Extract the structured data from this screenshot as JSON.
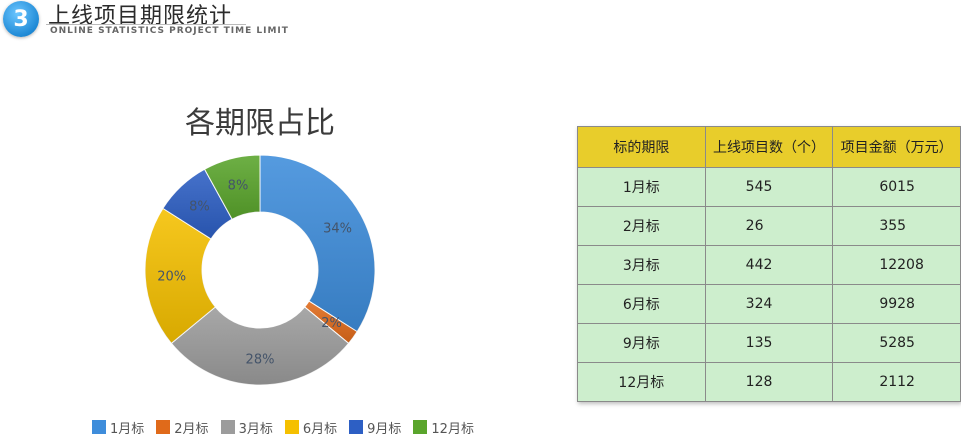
{
  "header": {
    "badge": "3",
    "title": "上线项目期限统计",
    "subtitle": "ONLINE STATISTICS PROJECT TIME LIMIT"
  },
  "chart_data": {
    "type": "pie",
    "title": "各期限占比",
    "categories": [
      "1月标",
      "2月标",
      "3月标",
      "6月标",
      "9月标",
      "12月标"
    ],
    "values": [
      34,
      2,
      28,
      20,
      8,
      8
    ],
    "labels": [
      "34%",
      "2%",
      "28%",
      "20%",
      "8%",
      "8%"
    ],
    "colors": [
      "#3e8ddb",
      "#e06a1a",
      "#9c9c9c",
      "#f5c000",
      "#2d5fc4",
      "#5aa52c"
    ],
    "legend_position": "bottom"
  },
  "table": {
    "headers": [
      "标的期限",
      "上线项目数（个）",
      "项目金额（万元）"
    ],
    "rows": [
      [
        "1月标",
        "545",
        "6015"
      ],
      [
        "2月标",
        "26",
        "355"
      ],
      [
        "3月标",
        "442",
        "12208"
      ],
      [
        "6月标",
        "324",
        "9928"
      ],
      [
        "9月标",
        "135",
        "5285"
      ],
      [
        "12月标",
        "128",
        "2112"
      ]
    ]
  }
}
